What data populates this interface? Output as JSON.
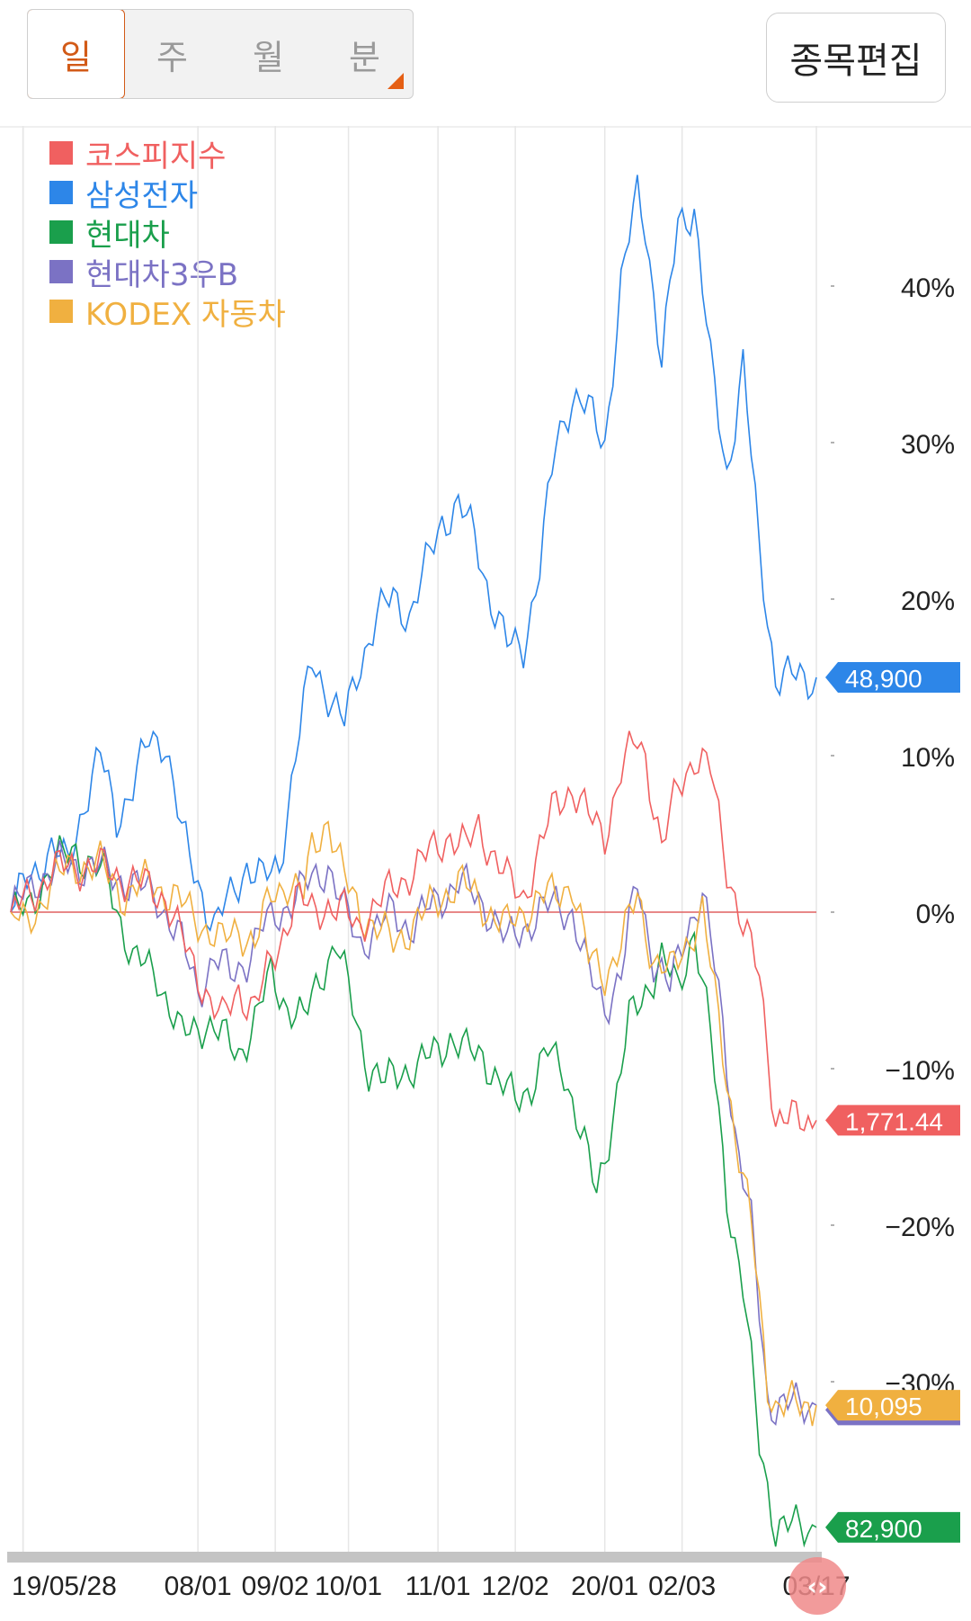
{
  "period_tabs": [
    {
      "label": "일",
      "active": true
    },
    {
      "label": "주",
      "active": false
    },
    {
      "label": "월",
      "active": false
    },
    {
      "label": "분",
      "active": false
    }
  ],
  "edit_button_label": "종목편집",
  "scroll_handle_glyph": "‹›",
  "chart_data": {
    "type": "line",
    "title": "",
    "xlabel": "",
    "ylabel": "",
    "ylim": [
      -40,
      50
    ],
    "yticks": [
      -30,
      -20,
      -10,
      0,
      10,
      20,
      30,
      40
    ],
    "ytick_labels": [
      "−30%",
      "−20%",
      "−10%",
      "0%",
      "10%",
      "20%",
      "30%",
      "40%"
    ],
    "x_tick_labels": [
      "19/05/28",
      "08/01",
      "09/02",
      "10/01",
      "11/01",
      "12/02",
      "20/01",
      "02/03",
      "03/17"
    ],
    "x_tick_index": [
      3,
      46,
      65,
      83,
      105,
      124,
      146,
      165,
      198
    ],
    "n_points": 199,
    "legend_position": "top-left",
    "grid": "vertical",
    "series": [
      {
        "name": "코스피지수",
        "color": "#f06060",
        "end_label": "1,771.44",
        "keypoints": [
          [
            0,
            0
          ],
          [
            5,
            1
          ],
          [
            10,
            2.7
          ],
          [
            20,
            3
          ],
          [
            30,
            2
          ],
          [
            38,
            1
          ],
          [
            44,
            -3
          ],
          [
            48,
            -5
          ],
          [
            52,
            -7
          ],
          [
            56,
            -5
          ],
          [
            60,
            -6
          ],
          [
            63,
            -4
          ],
          [
            66,
            -2
          ],
          [
            70,
            1
          ],
          [
            74,
            0
          ],
          [
            78,
            0.5
          ],
          [
            82,
            0
          ],
          [
            85,
            -1
          ],
          [
            88,
            0
          ],
          [
            92,
            1
          ],
          [
            96,
            2
          ],
          [
            100,
            3
          ],
          [
            104,
            4
          ],
          [
            108,
            5
          ],
          [
            112,
            4
          ],
          [
            115,
            5.5
          ],
          [
            118,
            4
          ],
          [
            122,
            2
          ],
          [
            126,
            1
          ],
          [
            130,
            4
          ],
          [
            134,
            7
          ],
          [
            138,
            8
          ],
          [
            142,
            6
          ],
          [
            146,
            5
          ],
          [
            150,
            9
          ],
          [
            154,
            11
          ],
          [
            156,
            10
          ],
          [
            160,
            4
          ],
          [
            164,
            8
          ],
          [
            168,
            10
          ],
          [
            172,
            9
          ],
          [
            176,
            3
          ],
          [
            180,
            -1
          ],
          [
            184,
            -4
          ],
          [
            188,
            -13.3
          ]
        ]
      },
      {
        "name": "삼성전자",
        "color": "#2d86e8",
        "end_label": "48,900",
        "keypoints": [
          [
            0,
            0
          ],
          [
            4,
            2
          ],
          [
            10,
            4
          ],
          [
            14,
            3
          ],
          [
            18,
            7
          ],
          [
            22,
            10
          ],
          [
            26,
            6
          ],
          [
            30,
            8
          ],
          [
            34,
            11
          ],
          [
            38,
            11
          ],
          [
            42,
            5
          ],
          [
            46,
            2
          ],
          [
            50,
            -1
          ],
          [
            54,
            1
          ],
          [
            58,
            3
          ],
          [
            62,
            2
          ],
          [
            66,
            3
          ],
          [
            70,
            10
          ],
          [
            74,
            16
          ],
          [
            78,
            14
          ],
          [
            82,
            12
          ],
          [
            86,
            16
          ],
          [
            90,
            19
          ],
          [
            94,
            20
          ],
          [
            98,
            19
          ],
          [
            102,
            22
          ],
          [
            106,
            25
          ],
          [
            110,
            26
          ],
          [
            114,
            24
          ],
          [
            118,
            20
          ],
          [
            122,
            17
          ],
          [
            126,
            17
          ],
          [
            130,
            22
          ],
          [
            134,
            30
          ],
          [
            138,
            33
          ],
          [
            142,
            32
          ],
          [
            146,
            30
          ],
          [
            150,
            40
          ],
          [
            154,
            46
          ],
          [
            156,
            44
          ],
          [
            160,
            35
          ],
          [
            164,
            44
          ],
          [
            168,
            45
          ],
          [
            172,
            35
          ],
          [
            176,
            28
          ],
          [
            180,
            35
          ],
          [
            184,
            23
          ],
          [
            188,
            15
          ]
        ]
      },
      {
        "name": "현대차",
        "color": "#1a9f4c",
        "end_label": "82,900",
        "keypoints": [
          [
            0,
            0
          ],
          [
            4,
            0
          ],
          [
            10,
            3
          ],
          [
            16,
            4
          ],
          [
            24,
            2
          ],
          [
            30,
            -3
          ],
          [
            36,
            -4
          ],
          [
            42,
            -8
          ],
          [
            48,
            -7
          ],
          [
            52,
            -8
          ],
          [
            56,
            -9
          ],
          [
            60,
            -7
          ],
          [
            64,
            -4
          ],
          [
            68,
            -6
          ],
          [
            72,
            -7
          ],
          [
            76,
            -4
          ],
          [
            80,
            -2
          ],
          [
            84,
            -6
          ],
          [
            88,
            -10
          ],
          [
            92,
            -11
          ],
          [
            96,
            -10
          ],
          [
            100,
            -10
          ],
          [
            104,
            -9
          ],
          [
            108,
            -8
          ],
          [
            112,
            -9
          ],
          [
            116,
            -9
          ],
          [
            120,
            -11
          ],
          [
            124,
            -12
          ],
          [
            128,
            -11
          ],
          [
            132,
            -9
          ],
          [
            136,
            -10
          ],
          [
            140,
            -14
          ],
          [
            144,
            -18
          ],
          [
            148,
            -13
          ],
          [
            152,
            -7
          ],
          [
            156,
            -5
          ],
          [
            160,
            -3
          ],
          [
            164,
            -5
          ],
          [
            168,
            -1
          ],
          [
            172,
            -8
          ],
          [
            176,
            -18
          ],
          [
            180,
            -24
          ],
          [
            184,
            -34
          ],
          [
            188,
            -39.3
          ]
        ]
      },
      {
        "name": "현대차3우B",
        "color": "#7b72c4",
        "end_label": "",
        "keypoints": [
          [
            0,
            0
          ],
          [
            6,
            2
          ],
          [
            12,
            3
          ],
          [
            20,
            3
          ],
          [
            28,
            2
          ],
          [
            36,
            1
          ],
          [
            42,
            -2
          ],
          [
            46,
            -5
          ],
          [
            50,
            -3
          ],
          [
            54,
            -4
          ],
          [
            58,
            -3
          ],
          [
            62,
            -1
          ],
          [
            66,
            0
          ],
          [
            70,
            1
          ],
          [
            74,
            2
          ],
          [
            78,
            3
          ],
          [
            82,
            0
          ],
          [
            86,
            -2
          ],
          [
            90,
            -1
          ],
          [
            94,
            0
          ],
          [
            98,
            -1
          ],
          [
            102,
            0
          ],
          [
            106,
            1
          ],
          [
            110,
            2
          ],
          [
            114,
            1
          ],
          [
            118,
            0
          ],
          [
            122,
            -2
          ],
          [
            126,
            -1
          ],
          [
            130,
            0
          ],
          [
            134,
            0.5
          ],
          [
            138,
            0
          ],
          [
            142,
            -4
          ],
          [
            146,
            -6
          ],
          [
            150,
            -4
          ],
          [
            154,
            2
          ],
          [
            158,
            -3
          ],
          [
            162,
            -5
          ],
          [
            166,
            -1
          ],
          [
            170,
            1
          ],
          [
            174,
            -5
          ],
          [
            178,
            -14
          ],
          [
            182,
            -20
          ],
          [
            186,
            -31
          ],
          [
            188,
            -31.5
          ]
        ]
      },
      {
        "name": "KODEX 자동차",
        "color": "#f0b040",
        "end_label": "10,095",
        "keypoints": [
          [
            0,
            0
          ],
          [
            4,
            -1
          ],
          [
            10,
            2
          ],
          [
            16,
            3
          ],
          [
            22,
            3
          ],
          [
            28,
            1
          ],
          [
            34,
            2
          ],
          [
            40,
            1
          ],
          [
            44,
            0
          ],
          [
            48,
            -1
          ],
          [
            52,
            -2
          ],
          [
            56,
            -1
          ],
          [
            60,
            -2
          ],
          [
            64,
            1
          ],
          [
            68,
            2
          ],
          [
            72,
            1
          ],
          [
            74,
            4
          ],
          [
            78,
            6
          ],
          [
            82,
            2
          ],
          [
            86,
            0
          ],
          [
            90,
            -1
          ],
          [
            94,
            -2
          ],
          [
            98,
            -1
          ],
          [
            102,
            0
          ],
          [
            106,
            1
          ],
          [
            110,
            2
          ],
          [
            114,
            1
          ],
          [
            118,
            0
          ],
          [
            122,
            -1
          ],
          [
            126,
            0
          ],
          [
            130,
            1
          ],
          [
            134,
            1
          ],
          [
            138,
            2
          ],
          [
            142,
            -3
          ],
          [
            146,
            -4
          ],
          [
            150,
            -2
          ],
          [
            154,
            1
          ],
          [
            158,
            -3
          ],
          [
            162,
            -4
          ],
          [
            166,
            -2
          ],
          [
            170,
            0
          ],
          [
            174,
            -7
          ],
          [
            178,
            -14
          ],
          [
            182,
            -20
          ],
          [
            186,
            -30
          ],
          [
            188,
            -31.5
          ]
        ]
      }
    ]
  }
}
